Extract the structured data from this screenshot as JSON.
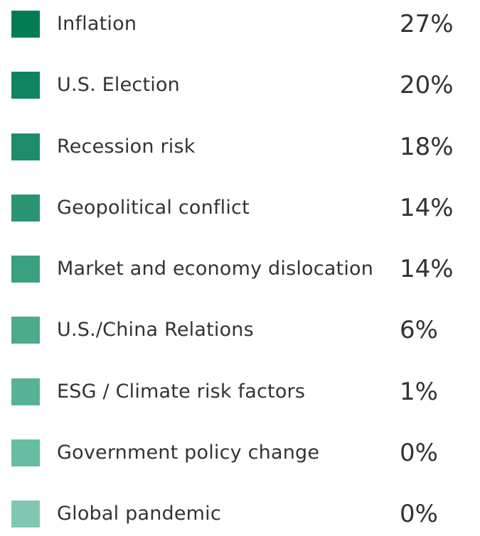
{
  "chart_data": {
    "type": "table",
    "categories": [
      "Inflation",
      "U.S. Election",
      "Recession risk",
      "Geopolitical conflict",
      "Market and economy dislocation",
      "U.S./China Relations",
      "ESG / Climate risk factors",
      "Government policy change",
      "Global pandemic"
    ],
    "values": [
      27,
      20,
      18,
      14,
      14,
      6,
      1,
      0,
      0
    ],
    "value_labels": [
      "27%",
      "20%",
      "18%",
      "14%",
      "14%",
      "6%",
      "1%",
      "0%",
      "0%"
    ],
    "colors": [
      "#007d53",
      "#0f8460",
      "#1d8c6a",
      "#2a9473",
      "#39a080",
      "#4aaa8a",
      "#58b396",
      "#67bda2",
      "#80c8b3"
    ]
  }
}
